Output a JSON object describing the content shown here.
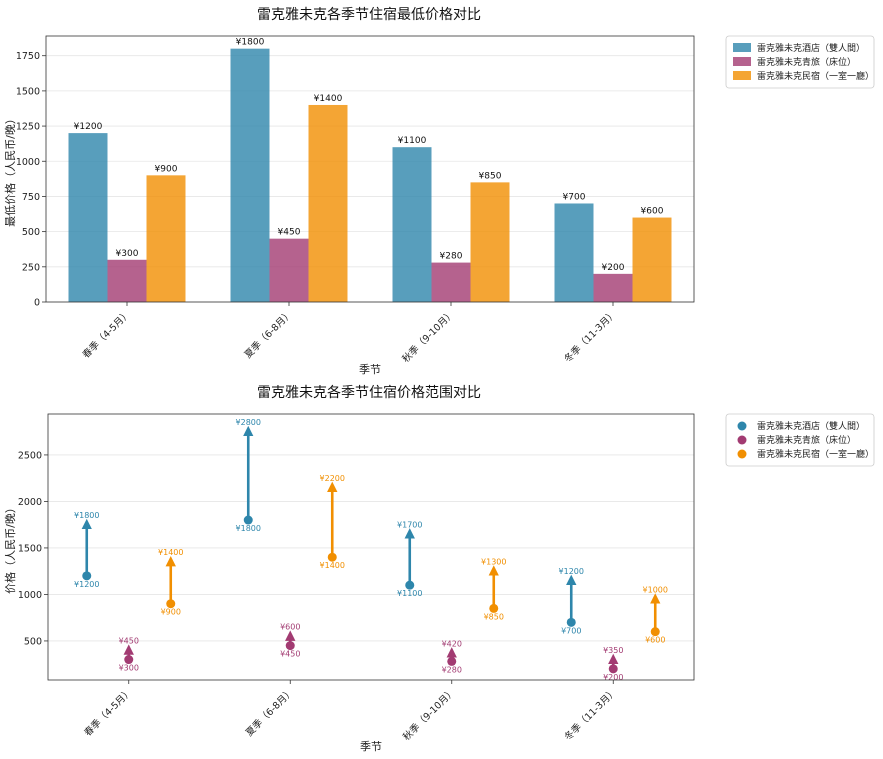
{
  "colors": {
    "hotel": "#2e86ab",
    "hostel": "#a23b72",
    "guesthouse": "#f18f01"
  },
  "chart_data": [
    {
      "type": "bar",
      "title": "雷克雅未克各季节住宿最低价格对比",
      "xlabel": "季节",
      "ylabel": "最低价格（人民币/晚）",
      "categories": [
        "春季（4-5月）",
        "夏季（6-8月）",
        "秋季（9-10月）",
        "冬季（11-3月）"
      ],
      "ylim": [
        0,
        1890
      ],
      "yticks": [
        0,
        250,
        500,
        750,
        1000,
        1250,
        1500,
        1750
      ],
      "grid": true,
      "legend_position": "outside-right",
      "value_label_prefix": "¥",
      "series": [
        {
          "name": "雷克雅未克酒店（雙人間）",
          "color": "#2e86ab",
          "values": [
            1200,
            1800,
            1100,
            700
          ]
        },
        {
          "name": "雷克雅未克青旅（床位）",
          "color": "#a23b72",
          "values": [
            300,
            450,
            280,
            200
          ]
        },
        {
          "name": "雷克雅未克民宿（一室一廳）",
          "color": "#f18f01",
          "values": [
            900,
            1400,
            850,
            600
          ]
        }
      ]
    },
    {
      "type": "range",
      "title": "雷克雅未克各季节住宿价格范围对比",
      "xlabel": "季节",
      "ylabel": "价格（人民币/晚）",
      "categories": [
        "春季（4-5月）",
        "夏季（6-8月）",
        "秋季（9-10月）",
        "冬季（11-3月）"
      ],
      "ylim": [
        80,
        2940
      ],
      "yticks": [
        500,
        1000,
        1500,
        2000,
        2500
      ],
      "grid": true,
      "legend_position": "outside-right",
      "value_label_prefix": "¥",
      "series": [
        {
          "name": "雷克雅未克酒店（雙人間）",
          "color": "#2e86ab",
          "min": [
            1200,
            1800,
            1100,
            700
          ],
          "max": [
            1800,
            2800,
            1700,
            1200
          ]
        },
        {
          "name": "雷克雅未克青旅（床位）",
          "color": "#a23b72",
          "min": [
            300,
            450,
            280,
            200
          ],
          "max": [
            450,
            600,
            420,
            350
          ]
        },
        {
          "name": "雷克雅未克民宿（一室一廳）",
          "color": "#f18f01",
          "min": [
            900,
            1400,
            850,
            600
          ],
          "max": [
            1400,
            2200,
            1300,
            1000
          ]
        }
      ]
    }
  ]
}
